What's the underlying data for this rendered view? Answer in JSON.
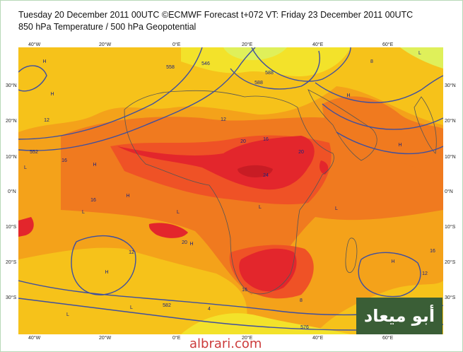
{
  "header": {
    "line1": "Tuesday 20 December 2011 00UTC ©ECMWF Forecast t+072 VT: Friday 23 December 2011 00UTC",
    "line2": "850 hPa Temperature / 500 hPa Geopotential"
  },
  "axes": {
    "lon_ticks": [
      "40°W",
      "20°W",
      "0°E",
      "20°E",
      "40°E",
      "60°E"
    ],
    "lat_ticks": [
      "30°N",
      "20°N",
      "10°N",
      "0°N",
      "10°S",
      "20°S",
      "30°S"
    ]
  },
  "colors": {
    "ocean_base": "#f4a21a",
    "warm_12_16": "#f07a1f",
    "warm_16_20": "#ef5226",
    "hot_20_24": "#e3262c",
    "hot_24_plus": "#c81c24",
    "mild_8_12": "#f6c21a",
    "mild_4_8": "#f3e22a",
    "cool_0_4": "#dff05a",
    "contour_line": "#3e4fa0",
    "coast_line": "#555555"
  },
  "contour_labels": [
    "12",
    "552",
    "16",
    "12",
    "20",
    "16",
    "20",
    "24",
    "16",
    "20",
    "16",
    "12",
    "582",
    "576",
    "588",
    "588",
    "8",
    "4",
    "8",
    "558",
    "546",
    "12",
    "16"
  ],
  "pressure_labels": [
    "H",
    "H",
    "H",
    "H",
    "H",
    "H",
    "H",
    "H",
    "H",
    "L",
    "L",
    "L",
    "L",
    "L",
    "L",
    "L",
    "L"
  ],
  "logo": {
    "text": "أبو ميعاد"
  },
  "footer": {
    "text": "albrari.com"
  }
}
